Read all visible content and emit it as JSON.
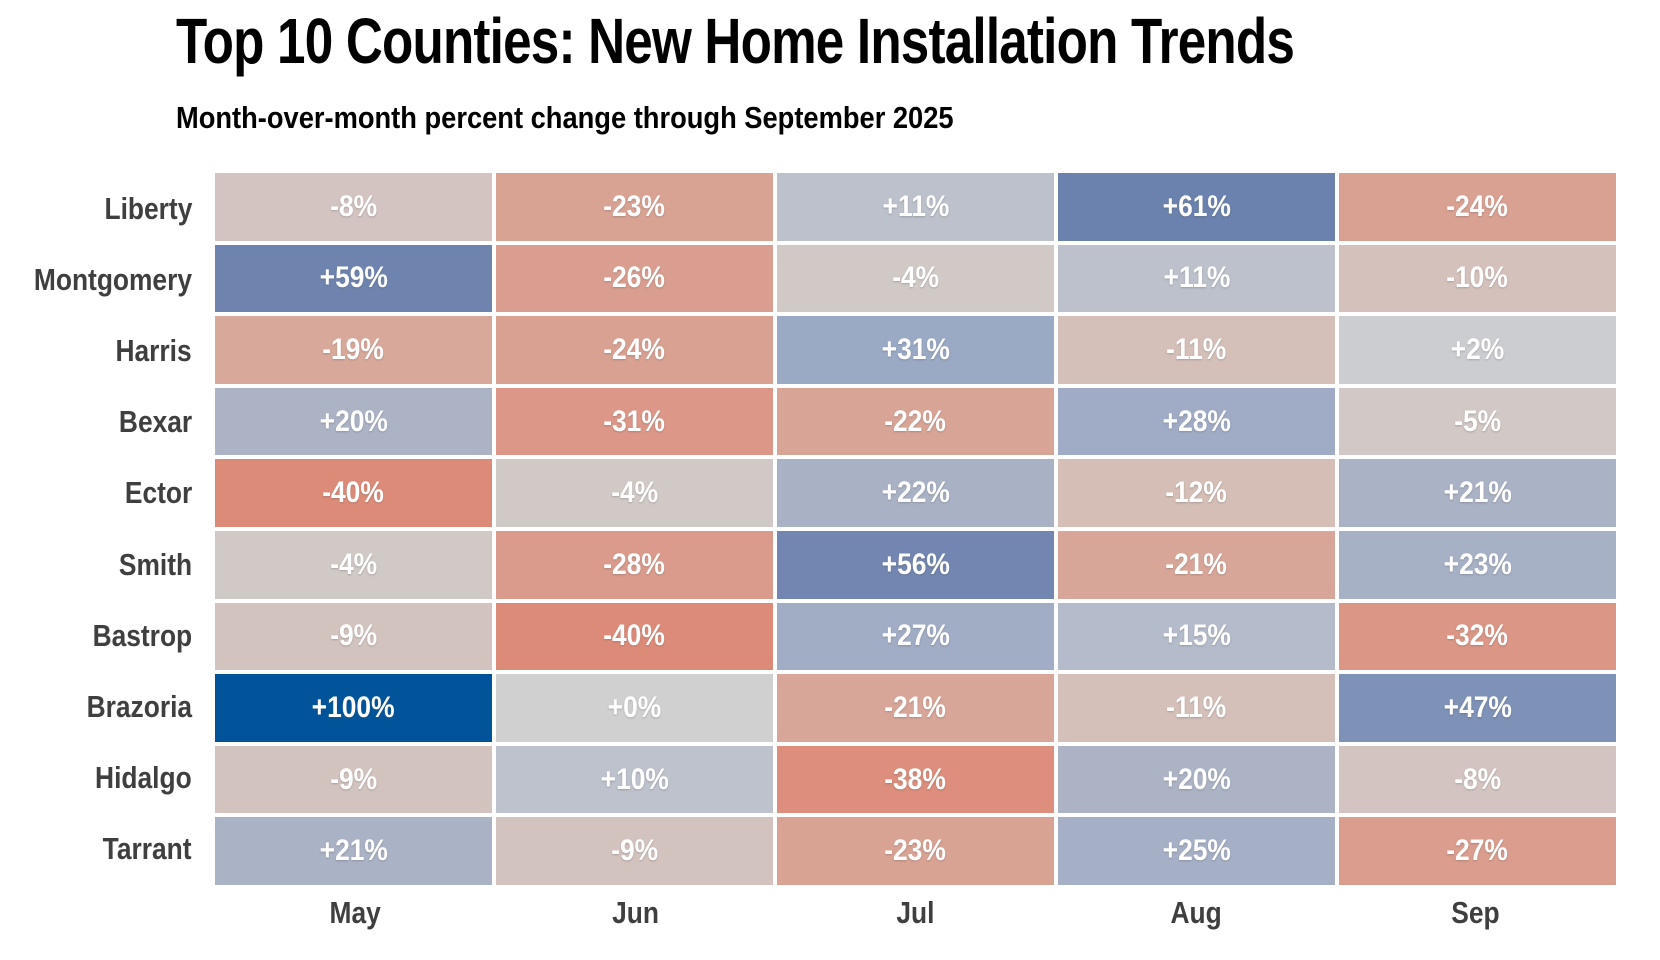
{
  "title": "Top 10 Counties: New Home Installation Trends",
  "subtitle": "Month-over-month percent change through September 2025",
  "chart_data": {
    "type": "heatmap",
    "x": [
      "May",
      "Jun",
      "Jul",
      "Aug",
      "Sep"
    ],
    "y": [
      "Liberty",
      "Montgomery",
      "Harris",
      "Bexar",
      "Ector",
      "Smith",
      "Bastrop",
      "Brazoria",
      "Hidalgo",
      "Tarrant"
    ],
    "values_percent": [
      [
        -8,
        -23,
        11,
        61,
        -24
      ],
      [
        59,
        -26,
        -4,
        11,
        -10
      ],
      [
        -19,
        -24,
        31,
        -11,
        2
      ],
      [
        20,
        -31,
        -22,
        28,
        -5
      ],
      [
        -40,
        -4,
        22,
        -12,
        21
      ],
      [
        -4,
        -28,
        56,
        -21,
        23
      ],
      [
        -9,
        -40,
        27,
        15,
        -32
      ],
      [
        100,
        0,
        -21,
        -11,
        47
      ],
      [
        -9,
        10,
        -38,
        20,
        -8
      ],
      [
        21,
        -9,
        -23,
        25,
        -27
      ]
    ],
    "cell_labels": [
      [
        "-8%",
        "-23%",
        "+11%",
        "+61%",
        "-24%"
      ],
      [
        "+59%",
        "-26%",
        "-4%",
        "+11%",
        "-10%"
      ],
      [
        "-19%",
        "-24%",
        "+31%",
        "-11%",
        "+2%"
      ],
      [
        "+20%",
        "-31%",
        "-22%",
        "+28%",
        "-5%"
      ],
      [
        "-40%",
        "-4%",
        "+22%",
        "-12%",
        "+21%"
      ],
      [
        "-4%",
        "-28%",
        "+56%",
        "-21%",
        "+23%"
      ],
      [
        "-9%",
        "-40%",
        "+27%",
        "+15%",
        "-32%"
      ],
      [
        "+100%",
        "+0%",
        "-21%",
        "-11%",
        "+47%"
      ],
      [
        "-9%",
        "+10%",
        "-38%",
        "+20%",
        "-8%"
      ],
      [
        "+21%",
        "-9%",
        "-23%",
        "+25%",
        "-27%"
      ]
    ],
    "legend": "none",
    "grid_gap_color": "#ffffff",
    "colorscale": {
      "type": "diverging",
      "negative_direction": "salmon-red",
      "positive_direction": "blue",
      "anchors": [
        {
          "value": -40,
          "color": "#dd8b79"
        },
        {
          "value": -31,
          "color": "#dc9788"
        },
        {
          "value": -26,
          "color": "#d99e8f"
        },
        {
          "value": -19,
          "color": "#d8a99b"
        },
        {
          "value": -12,
          "color": "#d4beb6"
        },
        {
          "value": -8,
          "color": "#d3c4c1"
        },
        {
          "value": -4,
          "color": "#d1c9c6"
        },
        {
          "value": 0,
          "color": "#d0d0d0"
        },
        {
          "value": 2,
          "color": "#cccdd0"
        },
        {
          "value": 11,
          "color": "#bcc1cb"
        },
        {
          "value": 15,
          "color": "#b4bbca"
        },
        {
          "value": 20,
          "color": "#abb3c5"
        },
        {
          "value": 25,
          "color": "#a5afc6"
        },
        {
          "value": 31,
          "color": "#9aa9c4"
        },
        {
          "value": 47,
          "color": "#7e91b6"
        },
        {
          "value": 56,
          "color": "#7286b1"
        },
        {
          "value": 61,
          "color": "#6b82ae"
        },
        {
          "value": 100,
          "color": "#02549a"
        }
      ]
    }
  },
  "colors": {
    "title_text": "#000000",
    "axis_label_text": "#3f3f3f",
    "cell_text": "#ffffff",
    "background": "#ffffff"
  }
}
